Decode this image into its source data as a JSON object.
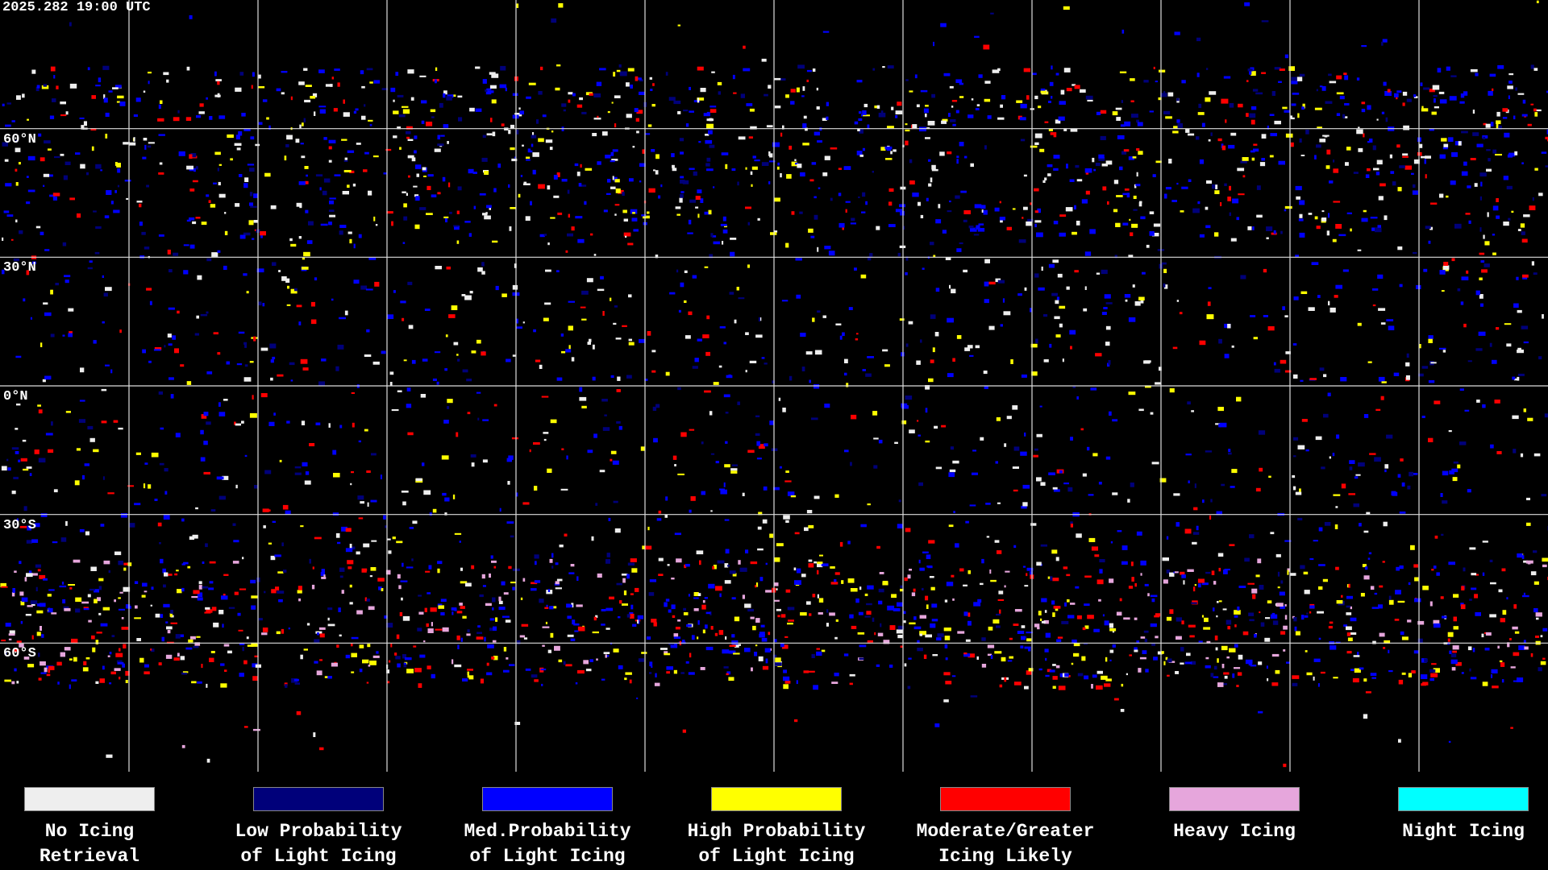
{
  "header": {
    "timestamp": "2025.282 19:00 UTC"
  },
  "map": {
    "latitude_labels": [
      "60°N",
      "30°N",
      "0°N",
      "30°S",
      "60°S"
    ]
  },
  "legend": {
    "items": [
      {
        "lines": [
          "No Icing",
          "Retrieval"
        ],
        "color": "#eeeeee"
      },
      {
        "lines": [
          "Low Probability",
          "of Light Icing"
        ],
        "color": "#00007a"
      },
      {
        "lines": [
          "Med.Probability",
          "of Light Icing"
        ],
        "color": "#0000ff"
      },
      {
        "lines": [
          "High Probability",
          "of Light Icing"
        ],
        "color": "#ffff00"
      },
      {
        "lines": [
          "Moderate/Greater",
          "Icing Likely"
        ],
        "color": "#ff0000"
      },
      {
        "lines": [
          "Heavy Icing"
        ],
        "color": "#e6a6dc"
      },
      {
        "lines": [
          "Night Icing"
        ],
        "color": "#00ffff"
      }
    ]
  }
}
